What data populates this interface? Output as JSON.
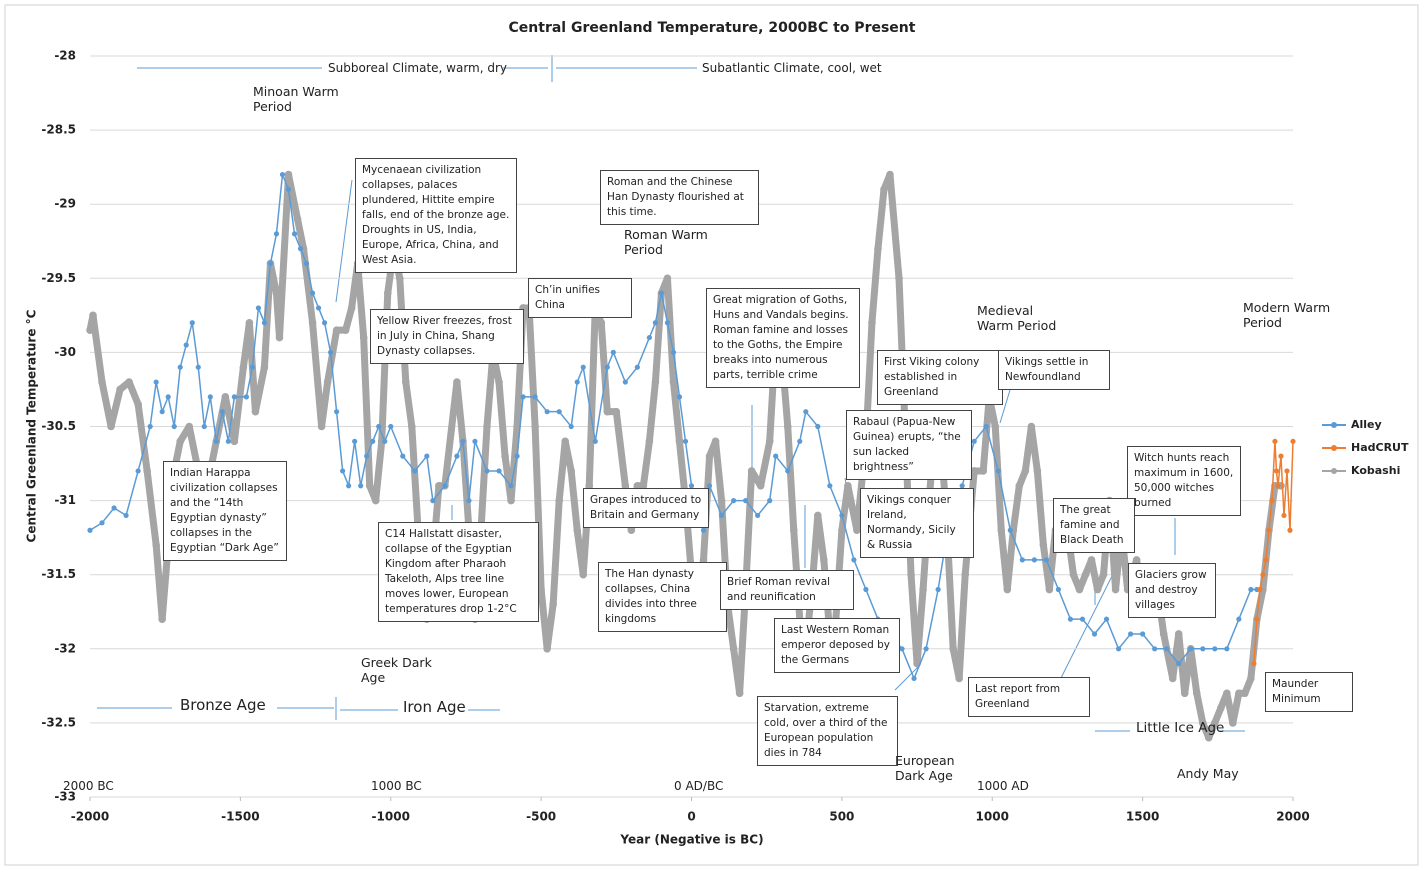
{
  "chart_data": {
    "type": "line",
    "title": "Central Greenland Temperature, 2000BC to Present",
    "xlabel": "Year (Negative is BC)",
    "ylabel": "Central Greenland Temperature °C",
    "xlim": [
      -2000,
      2000
    ],
    "ylim": [
      -33,
      -28
    ],
    "xticks": [
      -2000,
      -1500,
      -1000,
      -500,
      0,
      500,
      1000,
      1500,
      2000
    ],
    "yticks": [
      -28,
      -28.5,
      -29,
      -29.5,
      -30,
      -30.5,
      -31,
      -31.5,
      -32,
      -32.5,
      -33
    ],
    "grid": true,
    "legend": "right",
    "series": [
      {
        "name": "Alley",
        "color": "#5b9bd5",
        "x": [
          -2000,
          -1960,
          -1920,
          -1880,
          -1840,
          -1800,
          -1780,
          -1760,
          -1740,
          -1720,
          -1700,
          -1680,
          -1660,
          -1640,
          -1620,
          -1600,
          -1580,
          -1560,
          -1540,
          -1520,
          -1480,
          -1460,
          -1440,
          -1420,
          -1400,
          -1380,
          -1360,
          -1340,
          -1320,
          -1300,
          -1280,
          -1260,
          -1240,
          -1220,
          -1200,
          -1180,
          -1160,
          -1140,
          -1120,
          -1100,
          -1080,
          -1060,
          -1040,
          -1020,
          -1000,
          -960,
          -920,
          -880,
          -860,
          -820,
          -780,
          -760,
          -740,
          -720,
          -680,
          -640,
          -600,
          -580,
          -560,
          -520,
          -480,
          -440,
          -400,
          -380,
          -360,
          -320,
          -280,
          -260,
          -220,
          -180,
          -140,
          -120,
          -100,
          -80,
          -60,
          -40,
          -20,
          0,
          20,
          40,
          60,
          100,
          140,
          180,
          220,
          260,
          280,
          320,
          360,
          380,
          420,
          460,
          500,
          540,
          580,
          620,
          660,
          700,
          740,
          780,
          820,
          860,
          900,
          940,
          980,
          1020,
          1060,
          1100,
          1140,
          1180,
          1220,
          1260,
          1300,
          1340,
          1380,
          1420,
          1460,
          1500,
          1540,
          1580,
          1620,
          1660,
          1700,
          1740,
          1780,
          1820,
          1860,
          1880
        ],
        "values": [
          -31.2,
          -31.15,
          -31.05,
          -31.1,
          -30.8,
          -30.5,
          -30.2,
          -30.4,
          -30.3,
          -30.5,
          -30.1,
          -29.95,
          -29.8,
          -30.1,
          -30.5,
          -30.3,
          -30.6,
          -30.4,
          -30.6,
          -30.3,
          -30.3,
          -30.1,
          -29.7,
          -29.8,
          -29.4,
          -29.2,
          -28.8,
          -28.9,
          -29.2,
          -29.3,
          -29.4,
          -29.6,
          -29.7,
          -29.8,
          -30.0,
          -30.4,
          -30.8,
          -30.9,
          -30.6,
          -30.9,
          -30.7,
          -30.6,
          -30.5,
          -30.6,
          -30.5,
          -30.7,
          -30.8,
          -30.7,
          -31.0,
          -30.9,
          -30.7,
          -30.6,
          -31.0,
          -30.6,
          -30.8,
          -30.8,
          -30.9,
          -30.7,
          -30.3,
          -30.3,
          -30.4,
          -30.4,
          -30.5,
          -30.2,
          -30.1,
          -30.6,
          -30.1,
          -30.0,
          -30.2,
          -30.1,
          -29.9,
          -29.8,
          -29.6,
          -29.8,
          -30.0,
          -30.3,
          -30.6,
          -30.9,
          -31.1,
          -31.2,
          -30.9,
          -31.1,
          -31.0,
          -31.0,
          -31.1,
          -31.0,
          -30.7,
          -30.8,
          -30.6,
          -30.4,
          -30.5,
          -30.9,
          -31.1,
          -31.4,
          -31.6,
          -31.8,
          -31.9,
          -32.0,
          -32.2,
          -32.0,
          -31.6,
          -31.1,
          -30.9,
          -30.6,
          -30.5,
          -30.8,
          -31.2,
          -31.4,
          -31.4,
          -31.4,
          -31.6,
          -31.8,
          -31.8,
          -31.9,
          -31.8,
          -32.0,
          -31.9,
          -31.9,
          -32.0,
          -32.0,
          -32.1,
          -32.0,
          -32.0,
          -32.0,
          -32.0,
          -31.8,
          -31.6,
          -31.6
        ]
      },
      {
        "name": "HadCRUT",
        "color": "#ed7d31",
        "x": [
          1870,
          1880,
          1890,
          1900,
          1910,
          1920,
          1930,
          1940,
          1945,
          1950,
          1960,
          1970,
          1980,
          1990,
          2000
        ],
        "values": [
          -32.1,
          -31.8,
          -31.6,
          -31.5,
          -31.4,
          -31.2,
          -31.0,
          -30.6,
          -30.8,
          -30.9,
          -30.7,
          -31.1,
          -30.8,
          -31.2,
          -30.6
        ]
      },
      {
        "name": "Kobashi",
        "color": "#a5a5a5",
        "x": [
          -2000,
          -1990,
          -1960,
          -1930,
          -1900,
          -1870,
          -1840,
          -1810,
          -1780,
          -1760,
          -1740,
          -1720,
          -1700,
          -1670,
          -1640,
          -1610,
          -1580,
          -1550,
          -1520,
          -1490,
          -1470,
          -1450,
          -1420,
          -1400,
          -1380,
          -1370,
          -1340,
          -1310,
          -1290,
          -1260,
          -1230,
          -1210,
          -1180,
          -1150,
          -1130,
          -1110,
          -1090,
          -1070,
          -1050,
          -1030,
          -1010,
          -990,
          -970,
          -950,
          -930,
          -900,
          -880,
          -860,
          -840,
          -820,
          -780,
          -760,
          -740,
          -720,
          -700,
          -680,
          -660,
          -640,
          -620,
          -600,
          -580,
          -560,
          -540,
          -520,
          -500,
          -480,
          -460,
          -440,
          -420,
          -400,
          -380,
          -360,
          -340,
          -320,
          -300,
          -280,
          -250,
          -220,
          -200,
          -180,
          -160,
          -140,
          -120,
          -100,
          -80,
          -60,
          -40,
          -20,
          0,
          20,
          40,
          60,
          80,
          100,
          120,
          140,
          160,
          180,
          200,
          230,
          260,
          280,
          300,
          320,
          340,
          360,
          380,
          400,
          420,
          440,
          460,
          480,
          500,
          520,
          550,
          580,
          600,
          620,
          640,
          660,
          690,
          710,
          730,
          750,
          770,
          790,
          810,
          830,
          850,
          870,
          890,
          910,
          940,
          970,
          990,
          1010,
          1030,
          1050,
          1070,
          1090,
          1110,
          1130,
          1150,
          1170,
          1190,
          1210,
          1230,
          1250,
          1270,
          1290,
          1310,
          1330,
          1350,
          1370,
          1390,
          1410,
          1430,
          1450,
          1480,
          1500,
          1520,
          1550,
          1570,
          1600,
          1620,
          1640,
          1660,
          1680,
          1700,
          1720,
          1740,
          1760,
          1780,
          1800,
          1820,
          1840,
          1860,
          1880,
          1900,
          1920,
          1940,
          1960
        ],
        "values": [
          -29.85,
          -29.75,
          -30.2,
          -30.5,
          -30.25,
          -30.2,
          -30.35,
          -30.8,
          -31.3,
          -31.8,
          -31.3,
          -30.8,
          -30.6,
          -30.5,
          -30.8,
          -30.9,
          -30.6,
          -30.3,
          -30.6,
          -30.1,
          -29.8,
          -30.4,
          -30.1,
          -29.4,
          -29.6,
          -29.9,
          -28.8,
          -29.1,
          -29.3,
          -29.8,
          -30.5,
          -30.2,
          -29.85,
          -29.85,
          -29.7,
          -29.4,
          -29.9,
          -30.9,
          -31.0,
          -30.6,
          -29.6,
          -29.3,
          -29.5,
          -30.2,
          -30.5,
          -31.5,
          -31.8,
          -31.4,
          -30.9,
          -30.9,
          -30.2,
          -30.6,
          -31.2,
          -31.8,
          -31.2,
          -30.5,
          -30.0,
          -30.2,
          -30.7,
          -31.0,
          -30.5,
          -29.7,
          -29.7,
          -30.5,
          -31.6,
          -32.0,
          -31.7,
          -31.0,
          -30.6,
          -30.8,
          -31.2,
          -31.5,
          -30.9,
          -29.7,
          -29.8,
          -30.4,
          -30.4,
          -30.9,
          -31.2,
          -30.9,
          -30.9,
          -30.6,
          -30.2,
          -29.6,
          -29.5,
          -30.2,
          -30.6,
          -31.0,
          -31.5,
          -31.7,
          -31.4,
          -30.7,
          -30.6,
          -31.0,
          -31.7,
          -32.0,
          -32.3,
          -31.6,
          -30.8,
          -30.9,
          -30.6,
          -29.9,
          -30.0,
          -30.5,
          -31.2,
          -31.8,
          -32.0,
          -31.6,
          -31.1,
          -31.4,
          -31.9,
          -31.8,
          -31.2,
          -30.9,
          -31.2,
          -30.6,
          -29.8,
          -29.3,
          -28.9,
          -28.8,
          -29.5,
          -30.5,
          -31.5,
          -32.1,
          -31.6,
          -31.0,
          -30.5,
          -30.6,
          -31.2,
          -32.0,
          -32.2,
          -31.5,
          -30.8,
          -30.8,
          -30.3,
          -30.5,
          -31.2,
          -31.6,
          -31.2,
          -30.9,
          -30.8,
          -30.5,
          -30.8,
          -31.3,
          -31.6,
          -31.2,
          -31.1,
          -31.2,
          -31.5,
          -31.6,
          -31.5,
          -31.4,
          -31.6,
          -31.5,
          -31.0,
          -31.6,
          -31.2,
          -31.6,
          -31.4,
          -31.7,
          -31.5,
          -31.6,
          -31.9,
          -32.2,
          -31.9,
          -32.3,
          -32.0,
          -32.3,
          -32.5,
          -32.6,
          -32.5,
          -32.4,
          -32.3,
          -32.5,
          -32.3,
          -32.3,
          -32.2,
          -31.8,
          -31.6,
          -31.2,
          -30.9,
          -30.9
        ]
      }
    ],
    "annotations": [
      "Subboreal Climate, warm, dry",
      "Subatlantic Climate, cool, wet",
      "Minoan Warm Period",
      "Mycenaean civilization collapses, palaces plundered, Hittite empire falls, end of the bronze age. Droughts in US, India, Europe, Africa, China, and West Asia.",
      "Roman and the Chinese Han Dynasty flourished at this time.",
      "Roman Warm Period",
      "Ch’in unifies China",
      "Yellow River freezes, frost in July in China, Shang Dynasty collapses.",
      "Great migration of Goths, Huns and Vandals begins. Roman famine and losses to the Goths, the Empire breaks into numerous parts, terrible crime",
      "Medieval Warm Period",
      "Modern Warm Period",
      "First Viking colony established in Greenland",
      "Vikings settle in Newfoundland",
      "Rabaul (Papua-New Guinea) erupts, “the sun lacked brightness”",
      "Indian Harappa civilization collapses and the “14th Egyptian dynasty” collapses in the Egyptian “Dark Age”",
      "Witch hunts reach maximum in 1600, 50,000 witches burned",
      "Grapes introduced to Britain and Germany",
      "Vikings conquer Ireland, Normandy, Sicily & Russia",
      "The great famine and Black Death",
      "C14 Hallstatt disaster, collapse of the Egyptian Kingdom after Pharaoh Takeloth, Alps tree line moves lower, European temperatures drop 1-2°C",
      "The Han dynasty collapses, China divides into three kingdoms",
      "Brief Roman revival and reunification",
      "Glaciers grow and destroy villages",
      "Last Western Roman emperor deposed by the Germans",
      "Greek Dark Age",
      "Maunder Minimum",
      "Last report from Greenland",
      "Starvation, extreme cold, over a third of the European population dies in 784",
      "Bronze Age",
      "Iron Age",
      "Little Ice Age",
      "European Dark Age",
      "Andy May",
      "2000 BC",
      "1000 BC",
      "0 AD/BC",
      "1000 AD"
    ]
  }
}
